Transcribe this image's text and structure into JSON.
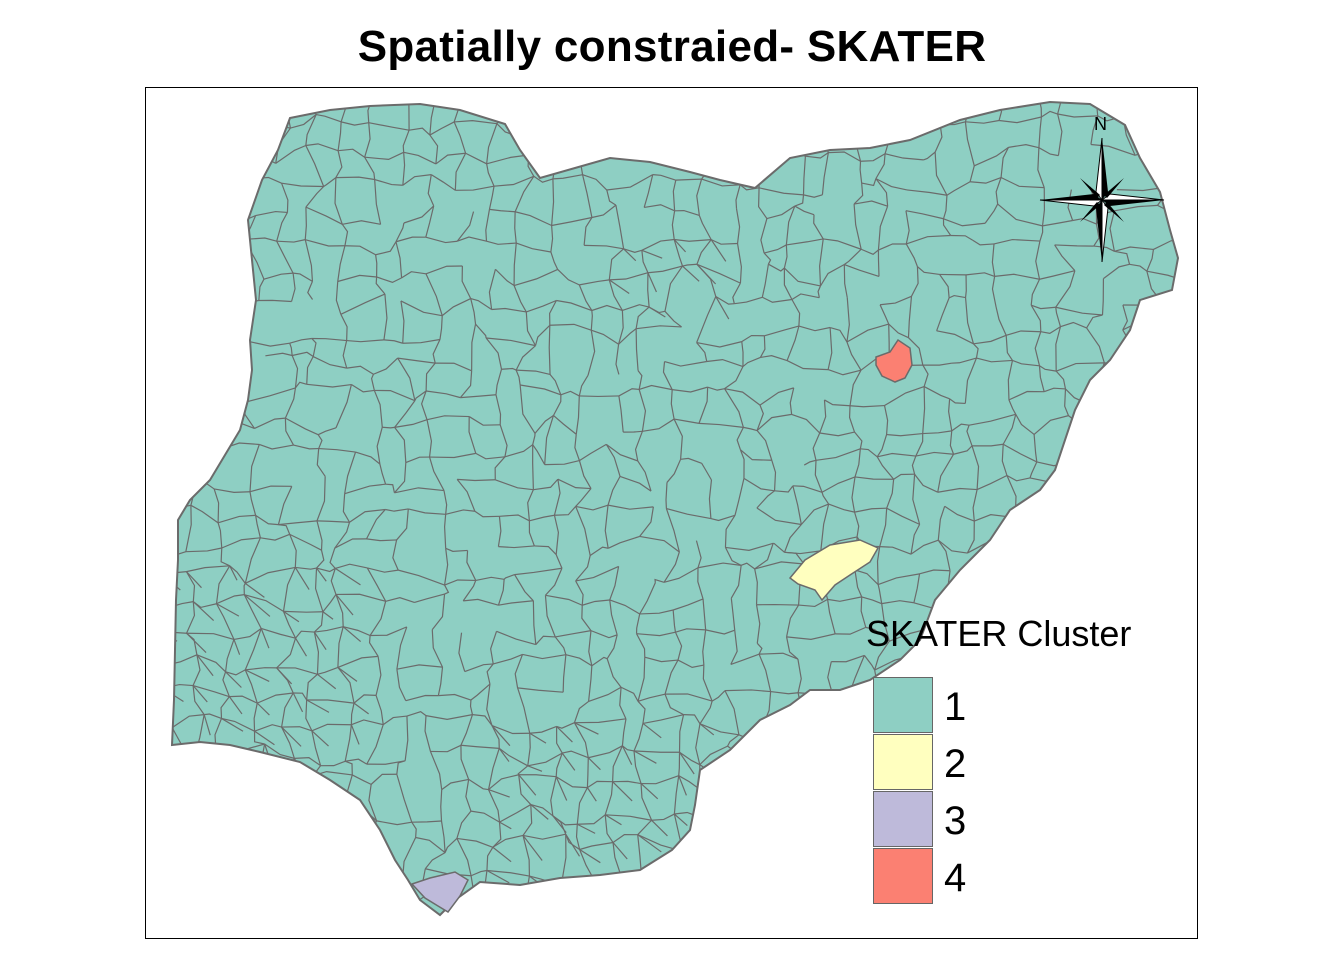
{
  "title": "Spatially constraied- SKATER",
  "legend": {
    "title": "SKATER Cluster",
    "items": [
      {
        "label": "1",
        "color": "#8ecfc3"
      },
      {
        "label": "2",
        "color": "#ffffbf"
      },
      {
        "label": "3",
        "color": "#bebada"
      },
      {
        "label": "4",
        "color": "#fb8072"
      }
    ]
  },
  "north_arrow": {
    "label": "N"
  },
  "colors": {
    "boundary": "#6b6b6b",
    "cluster1": "#8ecfc3",
    "cluster2": "#ffffbf",
    "cluster3": "#bebada",
    "cluster4": "#fb8072"
  }
}
